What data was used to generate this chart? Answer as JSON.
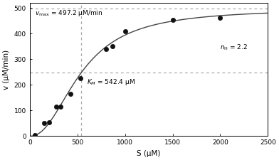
{
  "vmax": 497.2,
  "Km": 542.4,
  "nH": 2.2,
  "exp_S": [
    50,
    150,
    200,
    275,
    325,
    425,
    530,
    800,
    870,
    1000,
    1500,
    2000
  ],
  "exp_v": [
    5,
    50,
    55,
    115,
    115,
    165,
    225,
    340,
    350,
    410,
    455,
    462
  ],
  "S_line_max": 2500,
  "xlim": [
    0,
    2500
  ],
  "ylim": [
    0,
    520
  ],
  "xticks": [
    0,
    500,
    1000,
    1500,
    2000,
    2500
  ],
  "yticks": [
    0,
    100,
    200,
    300,
    400,
    500
  ],
  "xlabel": "S (μM)",
  "ylabel": "v (μM/min)",
  "line_color": "#444444",
  "dot_color": "#111111",
  "dashed_color": "#aaaaaa",
  "background_color": "#ffffff",
  "figsize": [
    3.92,
    2.25
  ],
  "dpi": 100
}
